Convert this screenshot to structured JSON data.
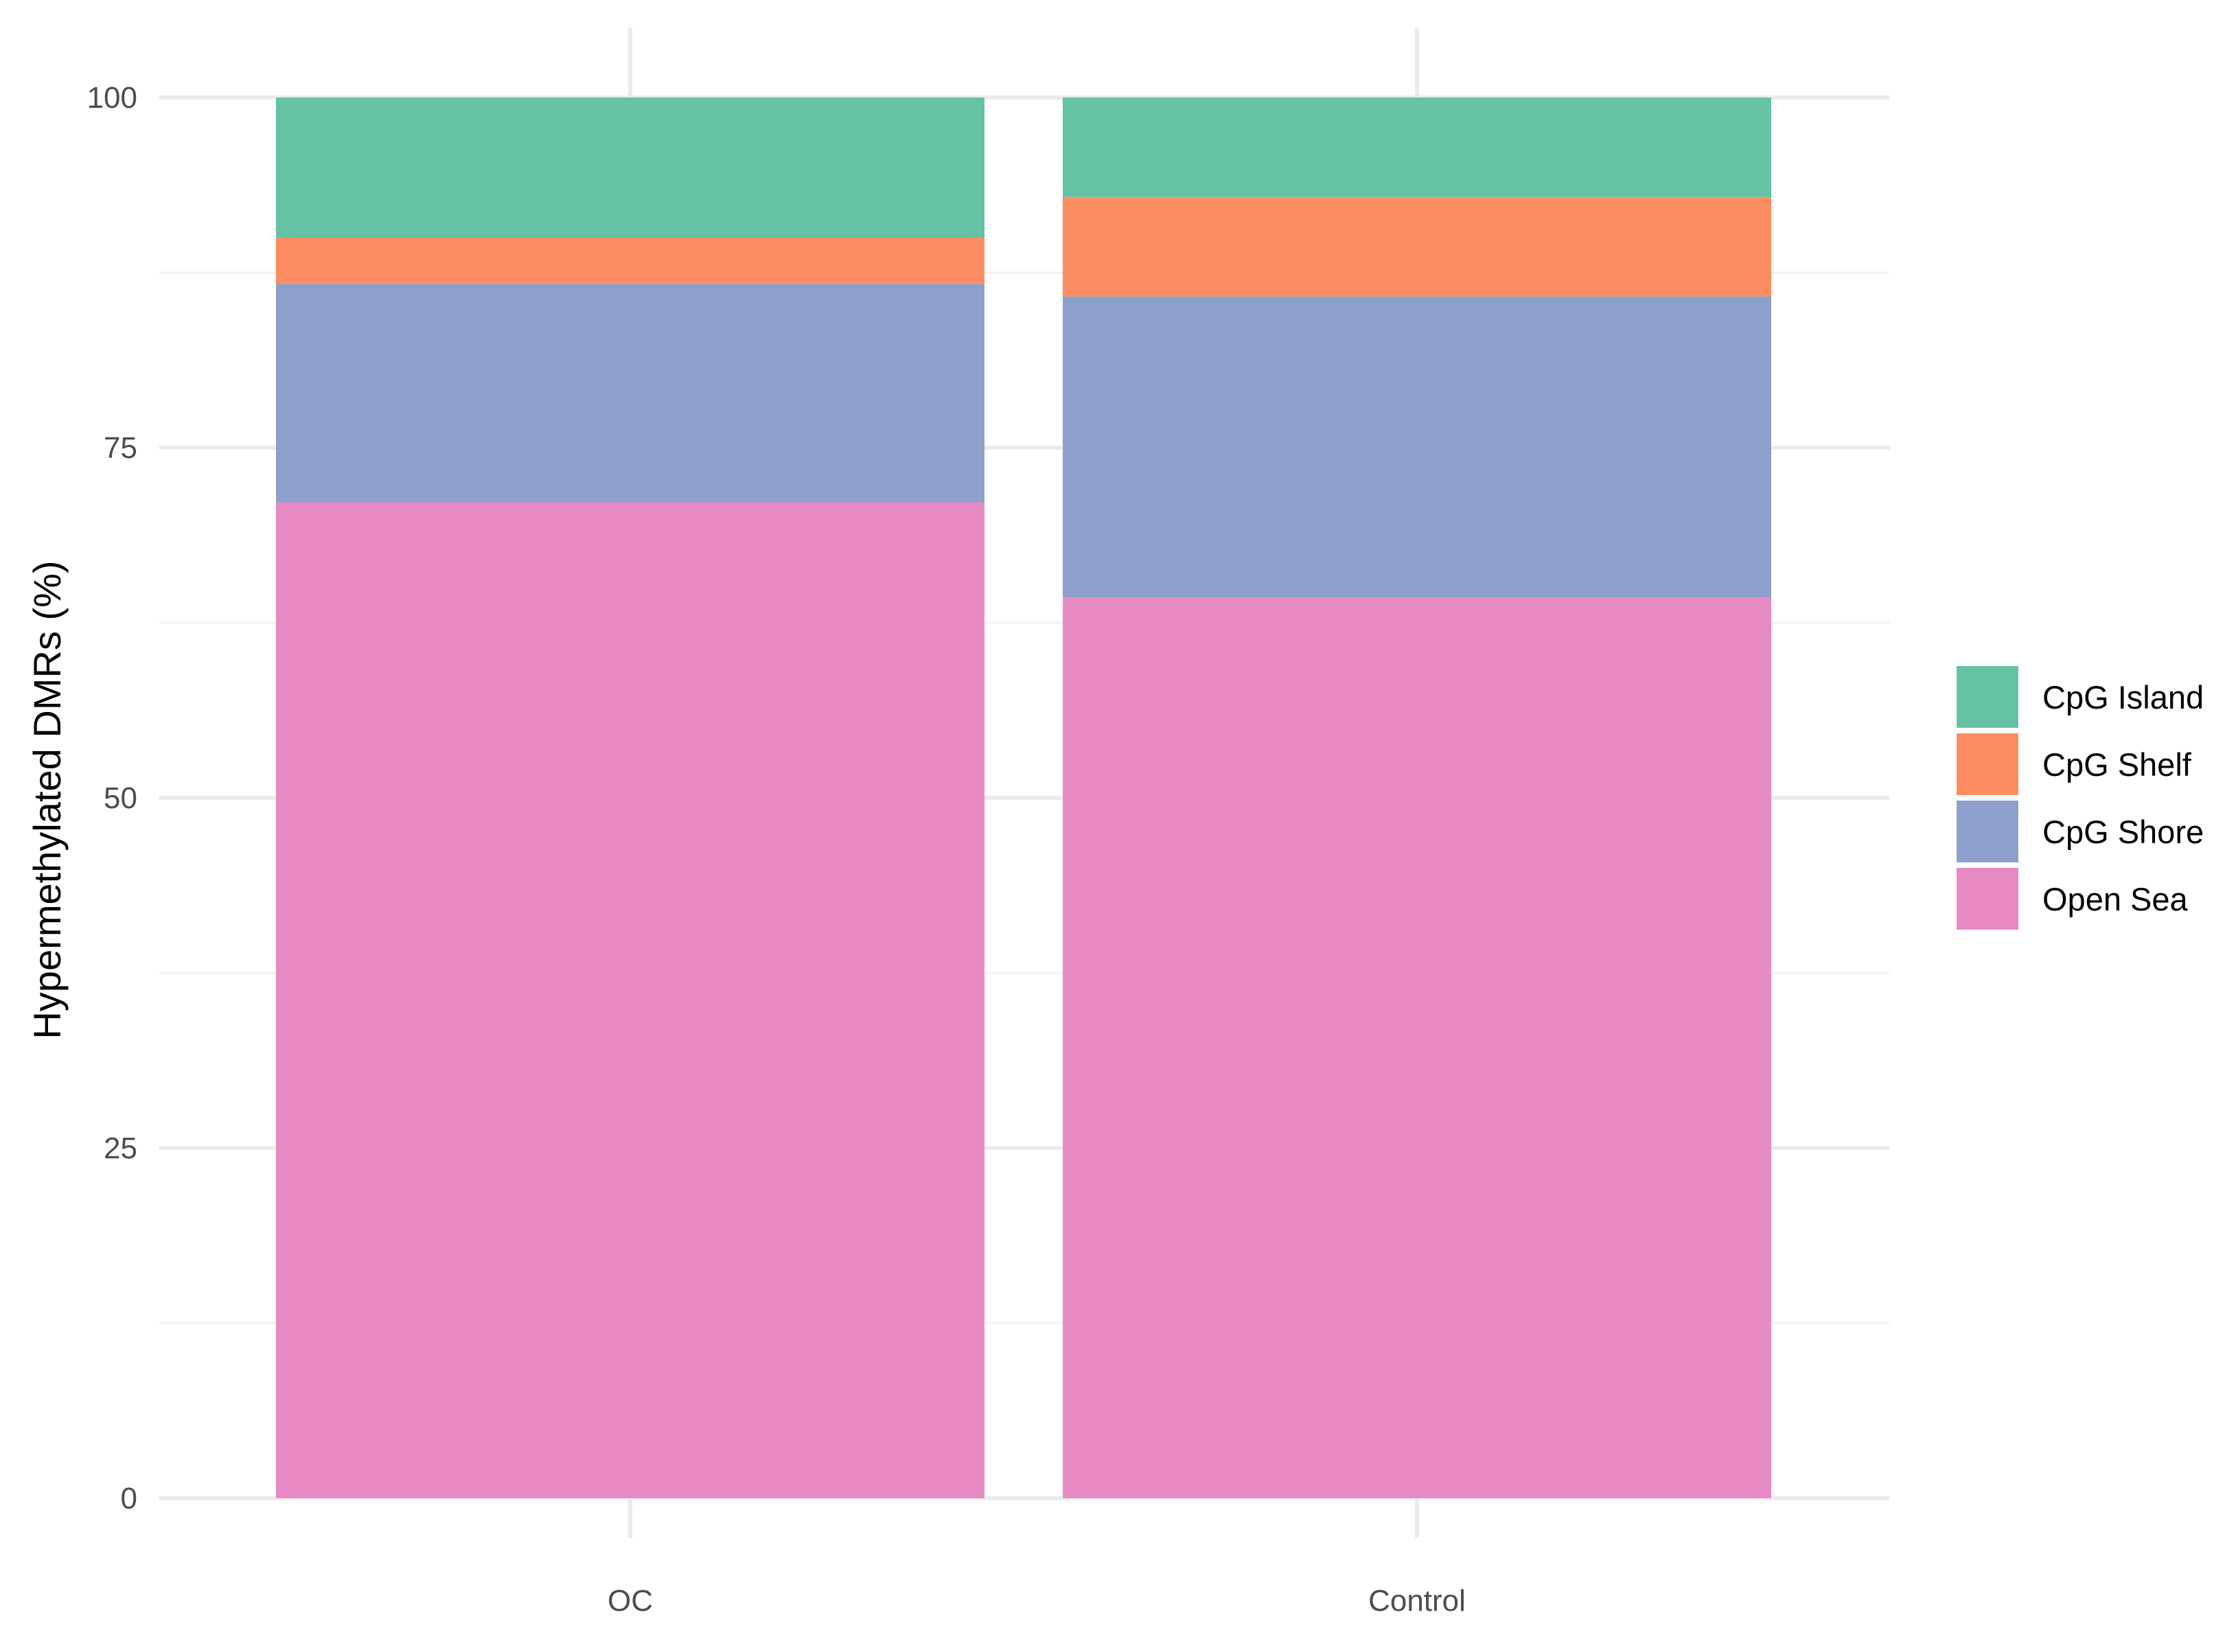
{
  "chart_data": {
    "type": "bar",
    "stacked": true,
    "categories": [
      "OC",
      "Control"
    ],
    "series": [
      {
        "name": "Open Sea",
        "color": "#e78ac3",
        "values": [
          71.1,
          64.3
        ]
      },
      {
        "name": "CpG Shore",
        "color": "#8da0cb",
        "values": [
          15.6,
          21.5
        ]
      },
      {
        "name": "CpG Shelf",
        "color": "#fc8d62",
        "values": [
          3.3,
          7.1
        ]
      },
      {
        "name": "CpG Island",
        "color": "#66c2a5",
        "values": [
          10.0,
          7.1
        ]
      }
    ],
    "legend_order": [
      "CpG Island",
      "CpG Shelf",
      "CpG Shore",
      "Open Sea"
    ],
    "title": "",
    "xlabel": "",
    "ylabel": "Hypermethylated DMRs (%)",
    "ylim": [
      0,
      100
    ],
    "yticks": [
      0,
      25,
      50,
      75,
      100
    ],
    "grid": true,
    "legend_position": "right"
  }
}
